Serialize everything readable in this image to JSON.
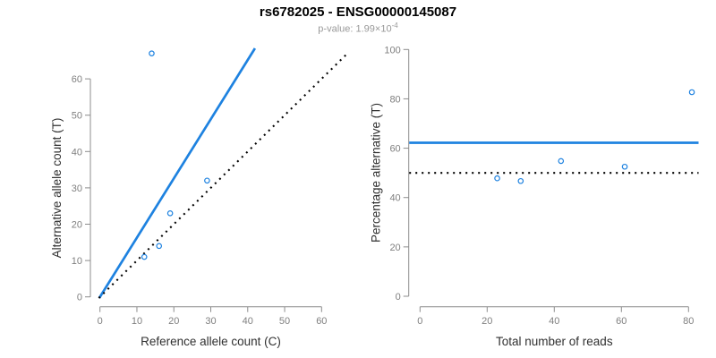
{
  "header": {
    "title": "rs6782025 - ENSG00000145087",
    "subtitle_base": "p-value: 1.99×10",
    "subtitle_exponent": "-4"
  },
  "colors": {
    "accent_blue": "#1E82E0",
    "dotted_black": "#000000",
    "axis_line": "#8C8C8C",
    "tick_label": "#7F7F7F",
    "axis_title": "#303030"
  },
  "chart_data": [
    {
      "type": "scatter",
      "panel": "left",
      "xlabel": "Reference allele count (C)",
      "ylabel": "Alternative allele count (T)",
      "xlim": [
        0,
        60
      ],
      "ylim": [
        0,
        60
      ],
      "xticks": [
        0,
        10,
        20,
        30,
        40,
        50,
        60
      ],
      "yticks": [
        0,
        10,
        20,
        30,
        40,
        50,
        60
      ],
      "grid": false,
      "legend": null,
      "points": [
        [
          12,
          11
        ],
        [
          16,
          14
        ],
        [
          19,
          23
        ],
        [
          29,
          32
        ],
        [
          14,
          67
        ]
      ],
      "ablines": [
        {
          "name": "fit-line",
          "slope": 1.63,
          "intercept": 0,
          "style": "solid",
          "color": "blue"
        },
        {
          "name": "identity-line",
          "slope": 1,
          "intercept": 0,
          "style": "dotted",
          "color": "black"
        }
      ]
    },
    {
      "type": "scatter",
      "panel": "right",
      "xlabel": "Total number of reads",
      "ylabel": "Percentage alternative (T)",
      "xlim": [
        0,
        80
      ],
      "ylim": [
        0,
        100
      ],
      "xticks": [
        0,
        20,
        40,
        60,
        80
      ],
      "yticks": [
        0,
        20,
        40,
        60,
        80,
        100
      ],
      "grid": false,
      "legend": null,
      "points": [
        [
          23,
          47.8
        ],
        [
          30,
          46.7
        ],
        [
          42,
          54.8
        ],
        [
          61,
          52.5
        ],
        [
          81,
          82.7
        ]
      ],
      "hlines": [
        {
          "name": "mean-percentage-line",
          "y": 62.2,
          "style": "solid",
          "color": "blue"
        },
        {
          "name": "fifty-percent-line",
          "y": 50,
          "style": "dotted",
          "color": "black"
        }
      ]
    }
  ]
}
